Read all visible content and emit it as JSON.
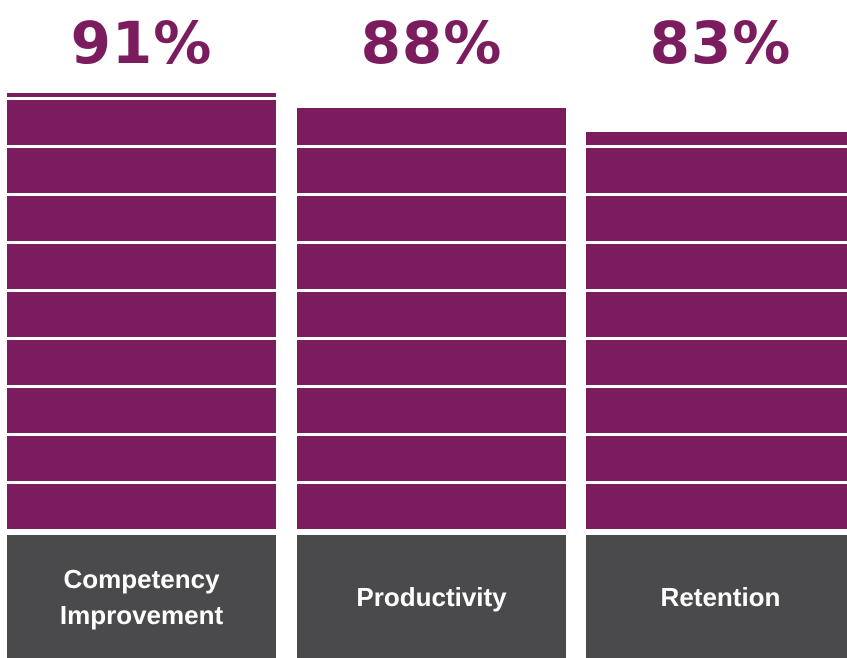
{
  "chart_data": {
    "type": "bar",
    "categories": [
      "Competency Improvement",
      "Productivity",
      "Retention"
    ],
    "values": [
      91,
      88,
      83
    ],
    "value_labels": [
      "91%",
      "88%",
      "83%"
    ],
    "color": "#7b1c5e",
    "ylim": [
      0,
      100
    ],
    "yticks": [
      0,
      10,
      20,
      30,
      40,
      50,
      60,
      70,
      80,
      90,
      100
    ],
    "grid": true
  }
}
